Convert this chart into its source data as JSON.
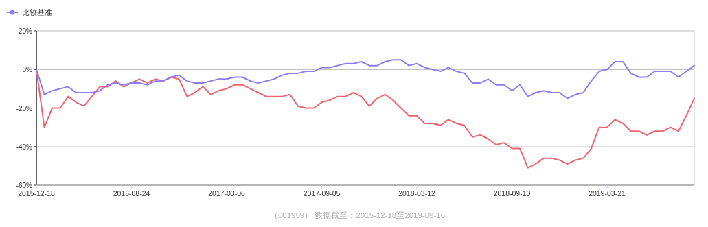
{
  "chart_data": {
    "type": "line",
    "categories": [
      "2015-12-18",
      null,
      null,
      null,
      null,
      null,
      null,
      null,
      null,
      null,
      null,
      null,
      "2016-08-24",
      null,
      null,
      null,
      null,
      null,
      null,
      null,
      null,
      null,
      null,
      null,
      "2017-03-06",
      null,
      null,
      null,
      null,
      null,
      null,
      null,
      null,
      null,
      null,
      null,
      "2017-09-05",
      null,
      null,
      null,
      null,
      null,
      null,
      null,
      null,
      null,
      null,
      null,
      "2018-03-12",
      null,
      null,
      null,
      null,
      null,
      null,
      null,
      null,
      null,
      null,
      null,
      "2018-09-10",
      null,
      null,
      null,
      null,
      null,
      null,
      null,
      null,
      null,
      null,
      null,
      "2019-03-21",
      null,
      null,
      null,
      null,
      null,
      null,
      null,
      null,
      null,
      null,
      null
    ],
    "series": [
      {
        "color": "#f06470",
        "values": [
          0,
          -30,
          -20,
          -20,
          -14,
          -17,
          -19,
          -14,
          -9,
          -9,
          -6,
          -9,
          -7,
          -5,
          -7,
          -5,
          -6,
          -4,
          -5,
          -14,
          -12,
          -9,
          -13,
          -11,
          -10,
          -8,
          -8,
          -10,
          -12,
          -14,
          -14,
          -14,
          -13,
          -19,
          -20,
          -20,
          -17,
          -16,
          -14,
          -14,
          -12,
          -14,
          -19,
          -15,
          -13,
          -16,
          -20,
          -24,
          -24,
          -28,
          -28,
          -29,
          -26,
          -28,
          -29,
          -35,
          -34,
          -36,
          -39,
          -38,
          -41,
          -41,
          -51,
          -49,
          -46,
          -46,
          -47,
          -49,
          -47,
          -46,
          -41,
          -30,
          -30,
          -26,
          -28,
          -32,
          -32,
          -34,
          -32,
          -32,
          -30,
          -32,
          -24,
          -15
        ]
      },
      {
        "name": "比较基准",
        "color": "#8e7cf3",
        "values": [
          0,
          -13,
          -11,
          -10,
          -9,
          -12,
          -12,
          -12,
          -11,
          -8,
          -7,
          -8,
          -7,
          -7,
          -8,
          -6,
          -6,
          -4,
          -3,
          -6,
          -7,
          -7,
          -6,
          -5,
          -5,
          -4,
          -4,
          -6,
          -7,
          -6,
          -5,
          -3,
          -2,
          -2,
          -1,
          -1,
          1,
          1,
          2,
          3,
          3,
          4,
          2,
          2,
          4,
          5,
          5,
          2,
          3,
          1,
          0,
          -1,
          1,
          -1,
          -2,
          -7,
          -7,
          -5,
          -8,
          -8,
          -11,
          -8,
          -14,
          -12,
          -11,
          -12,
          -12,
          -15,
          -13,
          -12,
          -6,
          -1,
          0,
          4,
          4,
          -2,
          -4,
          -4,
          -1,
          -1,
          -1,
          -4,
          -1,
          2
        ]
      }
    ],
    "ylim": [
      -60,
      20
    ],
    "yticks": [
      {
        "value": 20,
        "label": "20%"
      },
      {
        "value": 0,
        "label": "0%"
      },
      {
        "value": -20,
        "label": "-20%"
      },
      {
        "value": -40,
        "label": "-40%"
      },
      {
        "value": -60,
        "label": "-60%"
      }
    ],
    "grid": "y",
    "legend": "top left",
    "annotations": [
      "（001959） 数据截至：2015-12-18至2019-09-16"
    ]
  }
}
